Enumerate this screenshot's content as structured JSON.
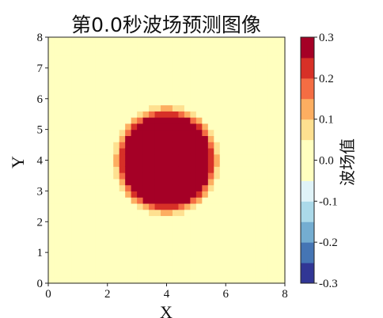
{
  "chart_data": {
    "type": "heatmap",
    "title": "第0.0秒波场预测图像",
    "xlabel": "X",
    "ylabel": "Y",
    "xlim": [
      0,
      8
    ],
    "ylim": [
      0,
      8
    ],
    "x_ticks": [
      "0",
      "2",
      "4",
      "6",
      "8"
    ],
    "y_ticks": [
      "0",
      "1",
      "2",
      "3",
      "4",
      "5",
      "6",
      "7",
      "8"
    ],
    "grid": false,
    "grid_resolution": 40,
    "field": {
      "description": "Circular pulse: value 0.3 inside radius, smooth falloff to 0 background",
      "center": [
        4.0,
        4.0
      ],
      "radius": 1.35,
      "peak_value": 0.3,
      "background_value": 0.0,
      "edge_width": 0.45
    },
    "colorbar": {
      "label": "波场值",
      "min": -0.3,
      "max": 0.3,
      "ticks": [
        "-0.3",
        "-0.2",
        "-0.1",
        "0.0",
        "0.1",
        "0.2",
        "0.3"
      ],
      "levels": 12,
      "colormap": "RdYlBu_r",
      "colors": [
        "#313695",
        "#4575b4",
        "#74add1",
        "#abd9e9",
        "#e0f3f8",
        "#ffffbf",
        "#ffffbf",
        "#fee090",
        "#fdae61",
        "#f46d43",
        "#d73027",
        "#a50026"
      ]
    }
  }
}
